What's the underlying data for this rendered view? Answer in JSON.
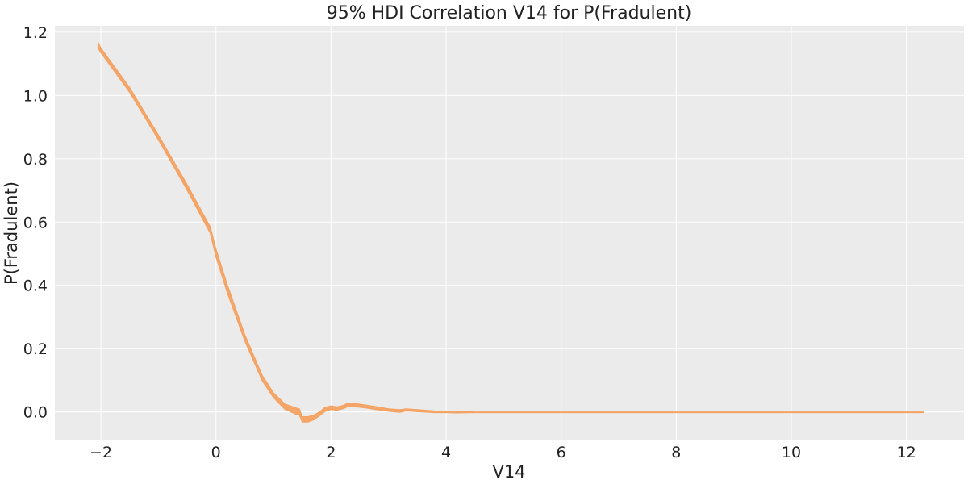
{
  "chart_data": {
    "type": "area",
    "title": "95% HDI Correlation V14 for P(Fradulent)",
    "xlabel": "V14",
    "ylabel": "P(Fradulent)",
    "xlim": [
      -2.8,
      13.0
    ],
    "ylim": [
      -0.09,
      1.22
    ],
    "xticks": [
      -2,
      0,
      2,
      4,
      6,
      8,
      10,
      12
    ],
    "yticks": [
      0.0,
      0.2,
      0.4,
      0.6,
      0.8,
      1.0,
      1.2
    ],
    "grid": true,
    "series": [
      {
        "fill_color": "#f4a262",
        "x": [
          -2.05,
          -2.0,
          -1.5,
          -1.0,
          -0.5,
          -0.1,
          0.0,
          0.2,
          0.5,
          0.8,
          1.0,
          1.2,
          1.4,
          1.45,
          1.5,
          1.6,
          1.7,
          1.8,
          1.9,
          2.0,
          2.1,
          2.2,
          2.3,
          2.4,
          2.6,
          2.8,
          3.0,
          3.2,
          3.3,
          3.5,
          3.8,
          4.0,
          4.2,
          4.5,
          5.0,
          6.0,
          8.0,
          10.0,
          12.3
        ],
        "lower": [
          1.15,
          1.135,
          1.01,
          0.86,
          0.7,
          0.565,
          0.49,
          0.375,
          0.225,
          0.1,
          0.045,
          0.008,
          -0.008,
          -0.01,
          -0.032,
          -0.032,
          -0.025,
          -0.012,
          0.002,
          0.008,
          0.005,
          0.01,
          0.017,
          0.017,
          0.013,
          0.007,
          0.002,
          -0.001,
          0.003,
          0.001,
          -0.002,
          -0.002,
          -0.003,
          -0.002,
          -0.002,
          -0.002,
          -0.002,
          -0.002,
          -0.002
        ],
        "upper": [
          1.168,
          1.15,
          1.025,
          0.875,
          0.718,
          0.585,
          0.515,
          0.4,
          0.245,
          0.117,
          0.06,
          0.025,
          0.012,
          0.01,
          -0.015,
          -0.015,
          -0.01,
          0.0,
          0.015,
          0.019,
          0.016,
          0.02,
          0.028,
          0.027,
          0.022,
          0.016,
          0.01,
          0.007,
          0.01,
          0.007,
          0.003,
          0.002,
          0.002,
          0.0,
          0.0,
          0.0,
          0.0,
          0.0,
          0.0
        ]
      }
    ]
  }
}
